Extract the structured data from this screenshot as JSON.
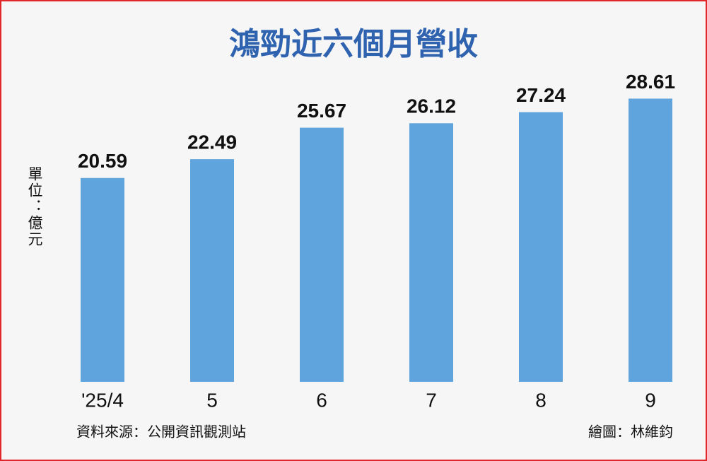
{
  "chart_data": {
    "type": "bar",
    "title": "鴻勁近六個月營收",
    "unit_label": "單位：億元",
    "categories": [
      "'25/4",
      "5",
      "6",
      "7",
      "8",
      "9"
    ],
    "values": [
      20.59,
      22.49,
      25.67,
      26.12,
      27.24,
      28.61
    ],
    "color": "#5fa4dd",
    "source": "資料來源：公開資訊觀測站",
    "credit": "繪圖：林維鈞"
  }
}
